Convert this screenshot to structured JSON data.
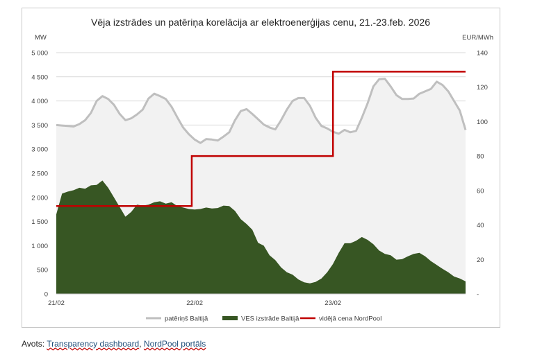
{
  "chart_data": {
    "type": "area",
    "title": "Vēja izstrādes un patēriņa korelācija ar elektroenerģijas cenu, 21.-23.feb. 2026",
    "y_left_unit": "MW",
    "y_right_unit": "EUR/MWh",
    "y_left_ticks": [
      "0",
      "500",
      "1 000",
      "1 500",
      "2 000",
      "2 500",
      "3 000",
      "3 500",
      "4 000",
      "4 500",
      "5 000"
    ],
    "y_right_ticks": [
      "-",
      "20",
      "40",
      "60",
      "80",
      "100",
      "120",
      "140"
    ],
    "ylim_left": [
      0,
      5000
    ],
    "ylim_right": [
      0,
      140
    ],
    "x_tick_labels": [
      "21/02",
      "22/02",
      "23/02"
    ],
    "x_tick_hours": [
      0,
      24,
      48
    ],
    "x_range_hours": [
      0,
      71
    ],
    "grid": "horizontal",
    "legend_position": "bottom",
    "series": [
      {
        "name": "patēriņš Baltijā",
        "kind": "area",
        "color": "#bfbfbf",
        "fill": "#f2f2f2",
        "x_hours": [
          0,
          1,
          2,
          3,
          4,
          5,
          6,
          7,
          8,
          9,
          10,
          11,
          12,
          13,
          14,
          15,
          16,
          17,
          18,
          19,
          20,
          21,
          22,
          23,
          24,
          25,
          26,
          27,
          28,
          29,
          30,
          31,
          32,
          33,
          34,
          35,
          36,
          37,
          38,
          39,
          40,
          41,
          42,
          43,
          44,
          45,
          46,
          47,
          48,
          49,
          50,
          51,
          52,
          53,
          54,
          55,
          56,
          57,
          58,
          59,
          60,
          61,
          62,
          63,
          64,
          65,
          66,
          67,
          68,
          69,
          70,
          71
        ],
        "values": [
          3500,
          3490,
          3480,
          3470,
          3520,
          3600,
          3750,
          4000,
          4100,
          4040,
          3920,
          3730,
          3600,
          3640,
          3720,
          3820,
          4050,
          4150,
          4100,
          4040,
          3880,
          3660,
          3450,
          3310,
          3200,
          3130,
          3210,
          3200,
          3180,
          3260,
          3350,
          3600,
          3790,
          3830,
          3730,
          3620,
          3510,
          3450,
          3410,
          3600,
          3820,
          4000,
          4060,
          4060,
          3900,
          3650,
          3480,
          3430,
          3360,
          3320,
          3400,
          3350,
          3380,
          3650,
          3950,
          4300,
          4450,
          4460,
          4300,
          4120,
          4040,
          4040,
          4050,
          4150,
          4200,
          4250,
          4400,
          4330,
          4200,
          4000,
          3800,
          3400
        ]
      },
      {
        "name": "VES izstrāde Baltijā",
        "kind": "area",
        "color": "#375623",
        "fill": "#375623",
        "x_hours": [
          0,
          1,
          2,
          3,
          4,
          5,
          6,
          7,
          8,
          9,
          10,
          11,
          12,
          13,
          14,
          15,
          16,
          17,
          18,
          19,
          20,
          21,
          22,
          23,
          24,
          25,
          26,
          27,
          28,
          29,
          30,
          31,
          32,
          33,
          34,
          35,
          36,
          37,
          38,
          39,
          40,
          41,
          42,
          43,
          44,
          45,
          46,
          47,
          48,
          49,
          50,
          51,
          52,
          53,
          54,
          55,
          56,
          57,
          58,
          59,
          60,
          61,
          62,
          63,
          64,
          65,
          66,
          67,
          68,
          69,
          70,
          71
        ],
        "values": [
          1650,
          2080,
          2120,
          2150,
          2200,
          2180,
          2250,
          2260,
          2350,
          2200,
          2000,
          1800,
          1600,
          1700,
          1850,
          1830,
          1850,
          1900,
          1920,
          1870,
          1900,
          1820,
          1790,
          1760,
          1750,
          1760,
          1790,
          1770,
          1780,
          1830,
          1820,
          1720,
          1550,
          1450,
          1330,
          1060,
          1000,
          800,
          700,
          550,
          450,
          400,
          300,
          240,
          220,
          250,
          320,
          450,
          620,
          850,
          1050,
          1050,
          1100,
          1180,
          1120,
          1030,
          900,
          830,
          800,
          710,
          720,
          780,
          830,
          850,
          780,
          680,
          600,
          520,
          450,
          360,
          320,
          260
        ]
      },
      {
        "name": "vidējā cena NordPool",
        "kind": "step",
        "axis": "right",
        "color": "#c00000",
        "segments": [
          {
            "from_hour": 0,
            "to_hour": 23.5,
            "value": 51
          },
          {
            "from_hour": 23.5,
            "to_hour": 48,
            "value": 80
          },
          {
            "from_hour": 48,
            "to_hour": 71,
            "value": 129
          }
        ]
      }
    ]
  },
  "source": {
    "label": "Avots:",
    "link1": "Transparency dashboard",
    "separator": ",",
    "link2": "NordPool portāls"
  }
}
